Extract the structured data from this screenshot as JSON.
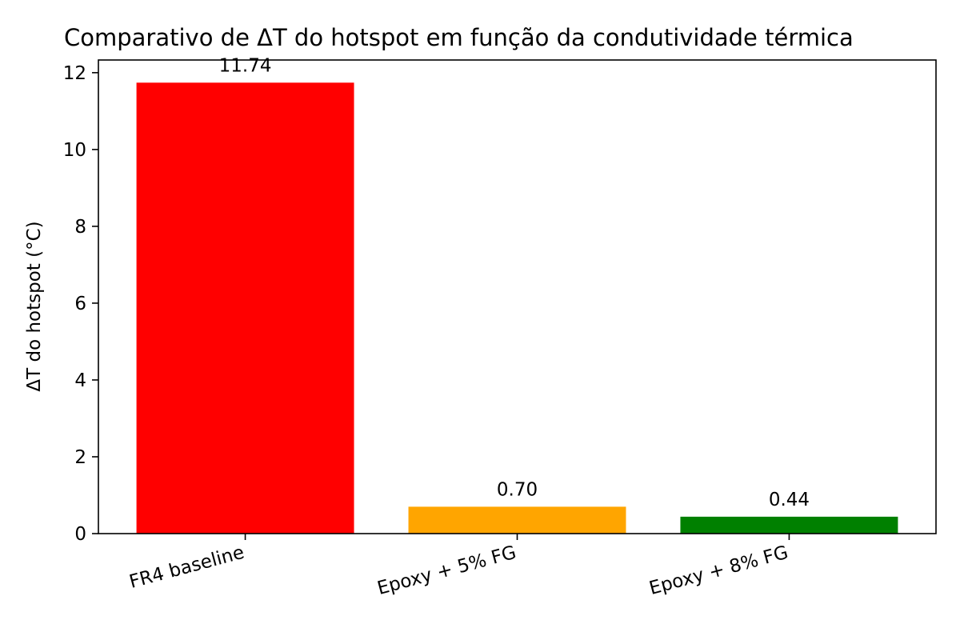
{
  "chart_data": {
    "type": "bar",
    "title": "Comparativo de ΔT do hotspot em função da condutividade térmica",
    "xlabel": "",
    "ylabel": "ΔT do hotspot (°C)",
    "categories": [
      "FR4 baseline",
      "Epoxy + 5% FG",
      "Epoxy + 8% FG"
    ],
    "values": [
      11.74,
      0.7,
      0.44
    ],
    "value_labels": [
      "11.74",
      "0.70",
      "0.44"
    ],
    "colors": [
      "#ff0000",
      "#ffa500",
      "#008000"
    ],
    "ylim": [
      0,
      12.33
    ],
    "yticks": [
      0,
      2,
      4,
      6,
      8,
      10,
      12
    ],
    "grid": false,
    "legend": "none"
  }
}
